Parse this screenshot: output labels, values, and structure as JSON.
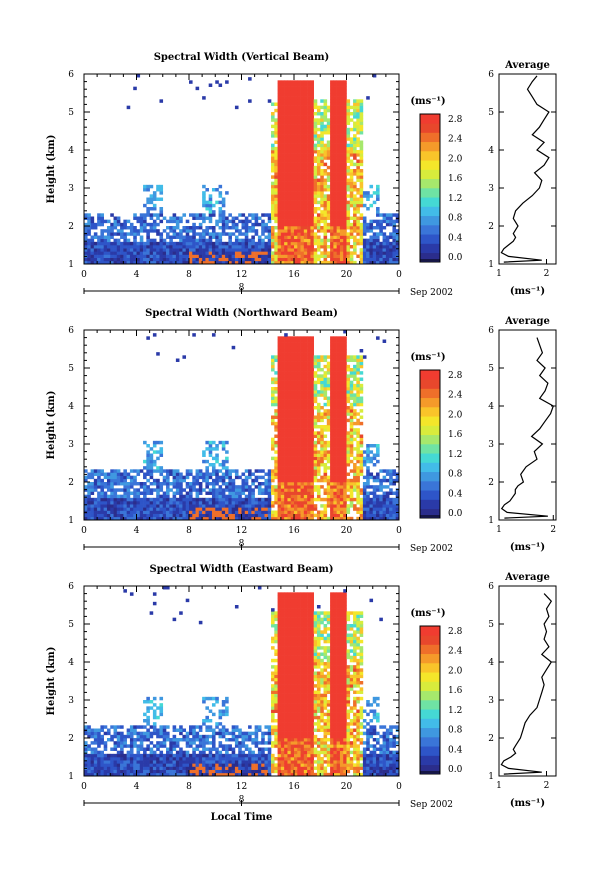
{
  "chart_data": [
    {
      "type": "heatmap",
      "title": "Spectral Width (Vertical Beam)",
      "ylabel": "Height (km)",
      "xticks": [
        "0",
        "4",
        "8",
        "12",
        "16",
        "20",
        "0"
      ],
      "yticks": [
        "1",
        "2",
        "3",
        "4",
        "5",
        "6"
      ],
      "xlim": [
        0,
        24
      ],
      "ylim": [
        1,
        6
      ],
      "date_label": "8",
      "month_label": "Sep 2002",
      "colorbar": {
        "unit": "(ms⁻¹)",
        "ticks": [
          "0.0",
          "0.4",
          "0.8",
          "1.2",
          "1.6",
          "2.0",
          "2.4",
          "2.8"
        ],
        "range": [
          0,
          3.0
        ]
      },
      "average": {
        "title": "Average",
        "xticks": [
          "1",
          "2"
        ],
        "xlim": [
          1,
          2.2
        ],
        "xlabel": "(ms⁻¹)",
        "heights": [
          1.05,
          1.1,
          1.2,
          1.3,
          1.4,
          1.5,
          1.6,
          1.7,
          1.8,
          1.9,
          2.0,
          2.2,
          2.4,
          2.6,
          2.8,
          3.0,
          3.2,
          3.4,
          3.6,
          3.8,
          4.0,
          4.2,
          4.4,
          4.6,
          4.8,
          5.0,
          5.2,
          5.4,
          5.6,
          5.8,
          5.95
        ],
        "values": [
          1.1,
          1.9,
          1.2,
          1.05,
          1.1,
          1.2,
          1.3,
          1.35,
          1.3,
          1.35,
          1.4,
          1.3,
          1.35,
          1.5,
          1.7,
          1.85,
          1.9,
          1.75,
          1.95,
          2.05,
          1.8,
          1.95,
          1.7,
          1.85,
          1.95,
          2.05,
          1.8,
          1.7,
          1.6,
          1.7,
          1.8
        ]
      }
    },
    {
      "type": "heatmap",
      "title": "Spectral Width (Northward Beam)",
      "ylabel": "Height (km)",
      "xticks": [
        "0",
        "4",
        "8",
        "12",
        "16",
        "20",
        "0"
      ],
      "yticks": [
        "1",
        "2",
        "3",
        "4",
        "5",
        "6"
      ],
      "xlim": [
        0,
        24
      ],
      "ylim": [
        1,
        6
      ],
      "date_label": "8",
      "month_label": "Sep 2002",
      "colorbar": {
        "unit": "(ms⁻¹)",
        "ticks": [
          "0.0",
          "0.4",
          "0.8",
          "1.2",
          "1.6",
          "2.0",
          "2.4",
          "2.8"
        ],
        "range": [
          0,
          3.0
        ]
      },
      "average": {
        "title": "Average",
        "xticks": [
          "1",
          "2"
        ],
        "xlim": [
          1,
          2.05
        ],
        "xlabel": "(ms⁻¹)",
        "heights": [
          1.05,
          1.1,
          1.2,
          1.3,
          1.4,
          1.5,
          1.6,
          1.7,
          1.8,
          1.9,
          2.0,
          2.2,
          2.4,
          2.6,
          2.8,
          3.0,
          3.2,
          3.4,
          3.6,
          3.8,
          4.0,
          4.2,
          4.4,
          4.6,
          4.8,
          5.0,
          5.2,
          5.4,
          5.6,
          5.8
        ],
        "values": [
          1.1,
          1.9,
          1.15,
          1.05,
          1.1,
          1.2,
          1.25,
          1.3,
          1.3,
          1.35,
          1.45,
          1.4,
          1.5,
          1.7,
          1.65,
          1.8,
          1.6,
          1.75,
          1.85,
          1.95,
          2.0,
          1.75,
          1.85,
          1.9,
          1.75,
          1.85,
          1.7,
          1.8,
          1.75,
          1.7
        ]
      }
    },
    {
      "type": "heatmap",
      "title": "Spectral Width (Eastward Beam)",
      "ylabel": "Height (km)",
      "xlabel": "Local Time",
      "xticks": [
        "0",
        "4",
        "8",
        "12",
        "16",
        "20",
        "0"
      ],
      "yticks": [
        "1",
        "2",
        "3",
        "4",
        "5",
        "6"
      ],
      "xlim": [
        0,
        24
      ],
      "ylim": [
        1,
        6
      ],
      "date_label": "8",
      "month_label": "Sep 2002",
      "colorbar": {
        "unit": "(ms⁻¹)",
        "ticks": [
          "0.0",
          "0.4",
          "0.8",
          "1.2",
          "1.6",
          "2.0",
          "2.4",
          "2.8"
        ],
        "range": [
          0,
          3.0
        ]
      },
      "average": {
        "title": "Average",
        "xticks": [
          "1",
          "2"
        ],
        "xlim": [
          1,
          2.2
        ],
        "xlabel": "(ms⁻¹)",
        "heights": [
          1.05,
          1.1,
          1.2,
          1.3,
          1.4,
          1.5,
          1.6,
          1.7,
          1.8,
          1.9,
          2.0,
          2.2,
          2.4,
          2.6,
          2.8,
          3.0,
          3.2,
          3.4,
          3.6,
          3.8,
          4.0,
          4.2,
          4.4,
          4.6,
          4.8,
          5.0,
          5.2,
          5.4,
          5.6,
          5.8
        ],
        "values": [
          1.1,
          1.9,
          1.2,
          1.05,
          1.1,
          1.25,
          1.35,
          1.3,
          1.35,
          1.4,
          1.45,
          1.5,
          1.55,
          1.65,
          1.8,
          1.85,
          1.9,
          1.95,
          1.9,
          2.0,
          2.1,
          1.9,
          2.05,
          1.95,
          2.0,
          1.95,
          2.05,
          2.0,
          2.1,
          1.95
        ]
      }
    }
  ]
}
